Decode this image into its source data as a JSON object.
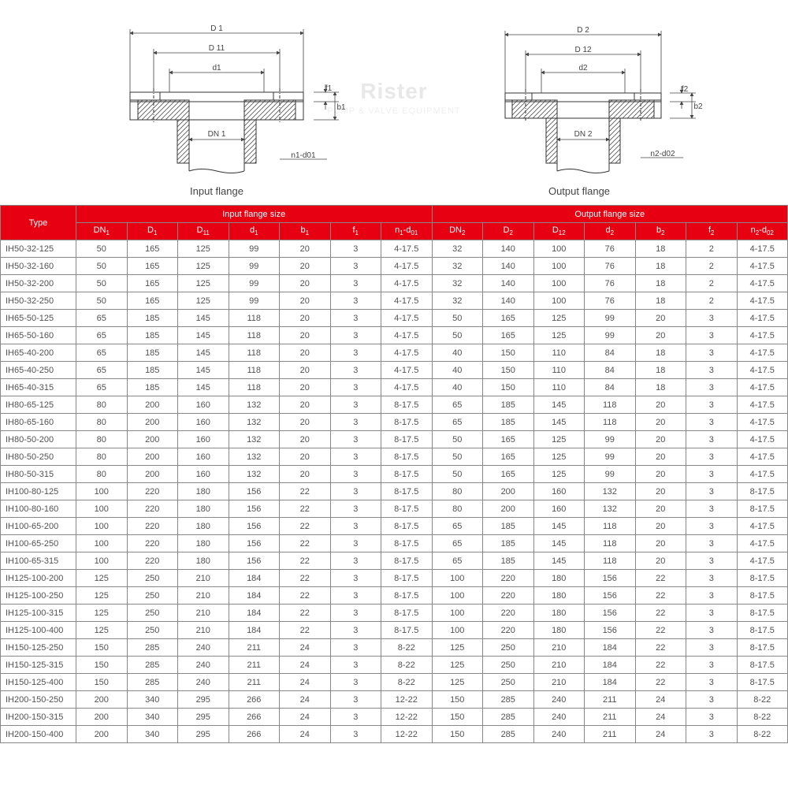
{
  "diagrams": {
    "input_label": "Input flange",
    "output_label": "Output flange",
    "input_dims": {
      "D": "D 1",
      "D1": "D 11",
      "d": "d1",
      "DN": "DN 1",
      "nd": "n1-d01",
      "f": "f1",
      "b": "b1"
    },
    "output_dims": {
      "D": "D 2",
      "D1": "D 12",
      "d": "d2",
      "DN": "DN 2",
      "nd": "n2-d02",
      "f": "f2",
      "b": "b2"
    }
  },
  "watermark": {
    "main": "Rister",
    "sub": "PUMP & VALVE EQUIPMENT"
  },
  "table": {
    "header_bg": "#e60012",
    "header_fg": "#ffffff",
    "border_color": "#888888",
    "cell_fg": "#525252",
    "type_label": "Type",
    "group1_label": "Input flange size",
    "group2_label": "Output flange size",
    "columns_in": [
      "DN1",
      "D1",
      "D11",
      "d1",
      "b1",
      "f1",
      "n1-d01"
    ],
    "columns_out": [
      "DN2",
      "D2",
      "D12",
      "d2",
      "b2",
      "f2",
      "n2-d02"
    ],
    "rows": [
      [
        "IH50-32-125",
        50,
        165,
        125,
        99,
        20,
        3,
        "4-17.5",
        32,
        140,
        100,
        76,
        18,
        2,
        "4-17.5"
      ],
      [
        "IH50-32-160",
        50,
        165,
        125,
        99,
        20,
        3,
        "4-17.5",
        32,
        140,
        100,
        76,
        18,
        2,
        "4-17.5"
      ],
      [
        "IH50-32-200",
        50,
        165,
        125,
        99,
        20,
        3,
        "4-17.5",
        32,
        140,
        100,
        76,
        18,
        2,
        "4-17.5"
      ],
      [
        "IH50-32-250",
        50,
        165,
        125,
        99,
        20,
        3,
        "4-17.5",
        32,
        140,
        100,
        76,
        18,
        2,
        "4-17.5"
      ],
      [
        "IH65-50-125",
        65,
        185,
        145,
        118,
        20,
        3,
        "4-17.5",
        50,
        165,
        125,
        99,
        20,
        3,
        "4-17.5"
      ],
      [
        "IH65-50-160",
        65,
        185,
        145,
        118,
        20,
        3,
        "4-17.5",
        50,
        165,
        125,
        99,
        20,
        3,
        "4-17.5"
      ],
      [
        "IH65-40-200",
        65,
        185,
        145,
        118,
        20,
        3,
        "4-17.5",
        40,
        150,
        110,
        84,
        18,
        3,
        "4-17.5"
      ],
      [
        "IH65-40-250",
        65,
        185,
        145,
        118,
        20,
        3,
        "4-17.5",
        40,
        150,
        110,
        84,
        18,
        3,
        "4-17.5"
      ],
      [
        "IH65-40-315",
        65,
        185,
        145,
        118,
        20,
        3,
        "4-17.5",
        40,
        150,
        110,
        84,
        18,
        3,
        "4-17.5"
      ],
      [
        "IH80-65-125",
        80,
        200,
        160,
        132,
        20,
        3,
        "8-17.5",
        65,
        185,
        145,
        118,
        20,
        3,
        "4-17.5"
      ],
      [
        "IH80-65-160",
        80,
        200,
        160,
        132,
        20,
        3,
        "8-17.5",
        65,
        185,
        145,
        118,
        20,
        3,
        "4-17.5"
      ],
      [
        "IH80-50-200",
        80,
        200,
        160,
        132,
        20,
        3,
        "8-17.5",
        50,
        165,
        125,
        99,
        20,
        3,
        "4-17.5"
      ],
      [
        "IH80-50-250",
        80,
        200,
        160,
        132,
        20,
        3,
        "8-17.5",
        50,
        165,
        125,
        99,
        20,
        3,
        "4-17.5"
      ],
      [
        "IH80-50-315",
        80,
        200,
        160,
        132,
        20,
        3,
        "8-17.5",
        50,
        165,
        125,
        99,
        20,
        3,
        "4-17.5"
      ],
      [
        "IH100-80-125",
        100,
        220,
        180,
        156,
        22,
        3,
        "8-17.5",
        80,
        200,
        160,
        132,
        20,
        3,
        "8-17.5"
      ],
      [
        "IH100-80-160",
        100,
        220,
        180,
        156,
        22,
        3,
        "8-17.5",
        80,
        200,
        160,
        132,
        20,
        3,
        "8-17.5"
      ],
      [
        "IH100-65-200",
        100,
        220,
        180,
        156,
        22,
        3,
        "8-17.5",
        65,
        185,
        145,
        118,
        20,
        3,
        "4-17.5"
      ],
      [
        "IH100-65-250",
        100,
        220,
        180,
        156,
        22,
        3,
        "8-17.5",
        65,
        185,
        145,
        118,
        20,
        3,
        "4-17.5"
      ],
      [
        "IH100-65-315",
        100,
        220,
        180,
        156,
        22,
        3,
        "8-17.5",
        65,
        185,
        145,
        118,
        20,
        3,
        "4-17.5"
      ],
      [
        "IH125-100-200",
        125,
        250,
        210,
        184,
        22,
        3,
        "8-17.5",
        100,
        220,
        180,
        156,
        22,
        3,
        "8-17.5"
      ],
      [
        "IH125-100-250",
        125,
        250,
        210,
        184,
        22,
        3,
        "8-17.5",
        100,
        220,
        180,
        156,
        22,
        3,
        "8-17.5"
      ],
      [
        "IH125-100-315",
        125,
        250,
        210,
        184,
        22,
        3,
        "8-17.5",
        100,
        220,
        180,
        156,
        22,
        3,
        "8-17.5"
      ],
      [
        "IH125-100-400",
        125,
        250,
        210,
        184,
        22,
        3,
        "8-17.5",
        100,
        220,
        180,
        156,
        22,
        3,
        "8-17.5"
      ],
      [
        "IH150-125-250",
        150,
        285,
        240,
        211,
        24,
        3,
        "8-22",
        125,
        250,
        210,
        184,
        22,
        3,
        "8-17.5"
      ],
      [
        "IH150-125-315",
        150,
        285,
        240,
        211,
        24,
        3,
        "8-22",
        125,
        250,
        210,
        184,
        22,
        3,
        "8-17.5"
      ],
      [
        "IH150-125-400",
        150,
        285,
        240,
        211,
        24,
        3,
        "8-22",
        125,
        250,
        210,
        184,
        22,
        3,
        "8-17.5"
      ],
      [
        "IH200-150-250",
        200,
        340,
        295,
        266,
        24,
        3,
        "12-22",
        150,
        285,
        240,
        211,
        24,
        3,
        "8-22"
      ],
      [
        "IH200-150-315",
        200,
        340,
        295,
        266,
        24,
        3,
        "12-22",
        150,
        285,
        240,
        211,
        24,
        3,
        "8-22"
      ],
      [
        "IH200-150-400",
        200,
        340,
        295,
        266,
        24,
        3,
        "12-22",
        150,
        285,
        240,
        211,
        24,
        3,
        "8-22"
      ]
    ]
  }
}
